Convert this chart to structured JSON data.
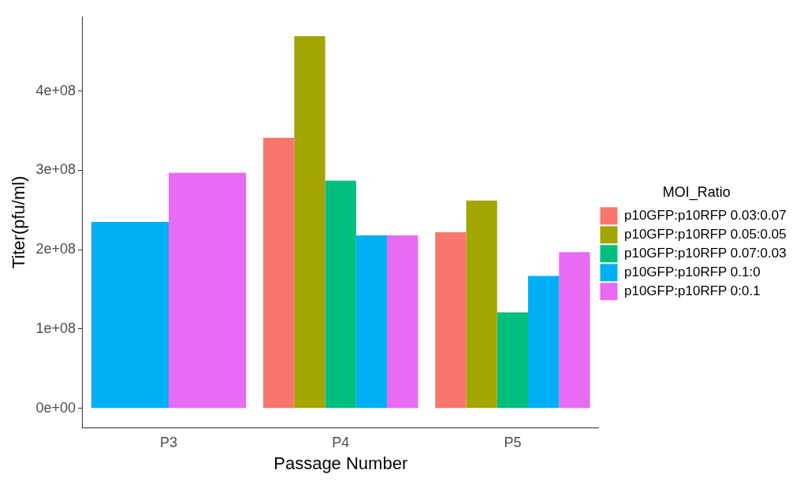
{
  "chart_data": {
    "type": "bar",
    "xlabel": "Passage Number",
    "ylabel": "Titer(pfu/ml)",
    "legend_title": "MOI_Ratio",
    "legend": "right",
    "grid": false,
    "categories": [
      "P3",
      "P4",
      "P5"
    ],
    "ylim": [
      -24000000,
      493000000
    ],
    "yticks": [
      {
        "value": 0,
        "label": "0e+00"
      },
      {
        "value": 100000000,
        "label": "1e+08"
      },
      {
        "value": 200000000,
        "label": "2e+08"
      },
      {
        "value": 300000000,
        "label": "3e+08"
      },
      {
        "value": 400000000,
        "label": "4e+08"
      }
    ],
    "series": [
      {
        "name": "p10GFP:p10RFP 0.03:0.07",
        "color": "#f8766d",
        "values": [
          null,
          341000000,
          222000000
        ]
      },
      {
        "name": "p10GFP:p10RFP 0.05:0.05",
        "color": "#a3a500",
        "values": [
          null,
          469000000,
          262000000
        ]
      },
      {
        "name": "p10GFP:p10RFP 0.07:0.03",
        "color": "#00bf7d",
        "values": [
          null,
          287000000,
          121000000
        ]
      },
      {
        "name": "p10GFP:p10RFP 0.1:0",
        "color": "#00b0f6",
        "values": [
          235000000,
          218000000,
          167000000
        ]
      },
      {
        "name": "p10GFP:p10RFP 0:0.1",
        "color": "#e76bf3",
        "values": [
          297000000,
          218000000,
          197000000
        ]
      }
    ]
  }
}
